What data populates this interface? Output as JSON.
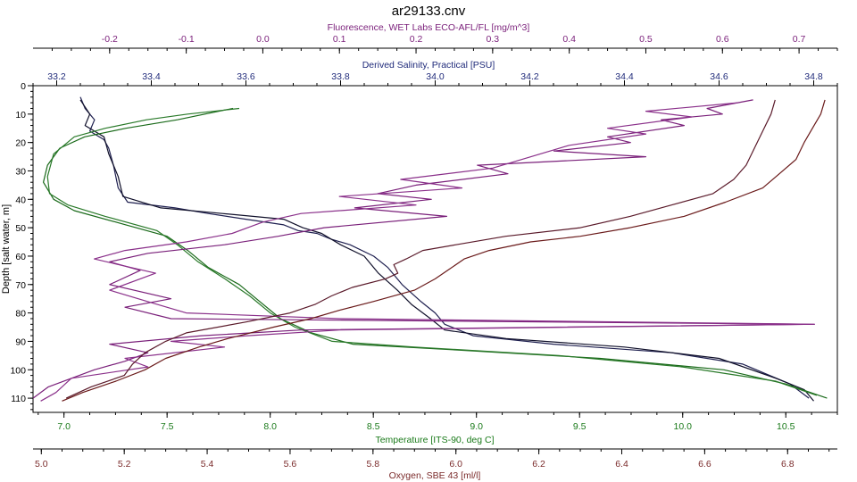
{
  "chart_data": {
    "type": "line",
    "title": "ar29133.cnv",
    "y_axis": {
      "label": "Depth [salt water, m]",
      "range": [
        0,
        115
      ],
      "inverted": true,
      "ticks": [
        "0",
        "10",
        "20",
        "30",
        "40",
        "50",
        "60",
        "70",
        "80",
        "90",
        "100",
        "110"
      ]
    },
    "x_axes": {
      "fluorescence": {
        "label": "Fluorescence, WET Labs ECO-AFL/FL [mg/m^3]",
        "position": "top",
        "range": [
          -0.3,
          0.75
        ],
        "ticks": [
          "-0.2",
          "-0.1",
          "0.0",
          "0.1",
          "0.2",
          "0.3",
          "0.4",
          "0.5",
          "0.6",
          "0.7"
        ],
        "color": "#7a1f7a"
      },
      "salinity": {
        "label": "Derived Salinity, Practical [PSU]",
        "position": "top",
        "range": [
          33.15,
          34.85
        ],
        "ticks": [
          "33.2",
          "33.4",
          "33.6",
          "33.8",
          "34.0",
          "34.2",
          "34.4",
          "34.6",
          "34.8"
        ],
        "color": "#1f2a7a"
      },
      "temperature": {
        "label": "Temperature [ITS-90, deg C]",
        "position": "bottom",
        "range": [
          6.85,
          10.75
        ],
        "ticks": [
          "7.0",
          "7.5",
          "8.0",
          "8.5",
          "9.0",
          "9.5",
          "10.0",
          "10.5"
        ],
        "color": "#1a7a1a"
      },
      "oxygen": {
        "label": "Oxygen, SBE 43 [ml/l]",
        "position": "bottom",
        "range": [
          4.98,
          6.92
        ],
        "ticks": [
          "5.0",
          "5.2",
          "5.4",
          "5.6",
          "5.8",
          "6.0",
          "6.2",
          "6.4",
          "6.6",
          "6.8"
        ],
        "color": "#7a2a2a"
      }
    },
    "series": [
      {
        "axis": "salinity",
        "color": "#1f2050",
        "points": [
          [
            33.25,
            4
          ],
          [
            33.26,
            8
          ],
          [
            33.28,
            12
          ],
          [
            33.27,
            16
          ],
          [
            33.3,
            19
          ],
          [
            33.31,
            22
          ],
          [
            33.32,
            28
          ],
          [
            33.33,
            36
          ],
          [
            33.35,
            41
          ],
          [
            33.45,
            43
          ],
          [
            33.52,
            45
          ],
          [
            33.6,
            47
          ],
          [
            33.68,
            49
          ],
          [
            33.71,
            51
          ],
          [
            33.75,
            52
          ],
          [
            33.78,
            54
          ],
          [
            33.82,
            56
          ],
          [
            33.87,
            60
          ],
          [
            33.9,
            64
          ],
          [
            33.93,
            70
          ],
          [
            33.97,
            76
          ],
          [
            34.0,
            80
          ],
          [
            34.02,
            84
          ],
          [
            34.08,
            88
          ],
          [
            34.25,
            91
          ],
          [
            34.5,
            94
          ],
          [
            34.65,
            98
          ],
          [
            34.75,
            105
          ],
          [
            34.79,
            110
          ]
        ]
      },
      {
        "axis": "salinity",
        "color": "#10102a",
        "points": [
          [
            33.25,
            5
          ],
          [
            33.27,
            10
          ],
          [
            33.26,
            14
          ],
          [
            33.3,
            18
          ],
          [
            33.31,
            24
          ],
          [
            33.33,
            32
          ],
          [
            33.34,
            39
          ],
          [
            33.42,
            43
          ],
          [
            33.55,
            45
          ],
          [
            33.68,
            47
          ],
          [
            33.72,
            50
          ],
          [
            33.76,
            52
          ],
          [
            33.8,
            56
          ],
          [
            33.85,
            60
          ],
          [
            33.88,
            66
          ],
          [
            33.92,
            72
          ],
          [
            33.95,
            77
          ],
          [
            33.99,
            82
          ],
          [
            34.02,
            86
          ],
          [
            34.15,
            89
          ],
          [
            34.4,
            92
          ],
          [
            34.6,
            96
          ],
          [
            34.72,
            103
          ],
          [
            34.78,
            107
          ],
          [
            34.8,
            111
          ]
        ]
      },
      {
        "axis": "temperature",
        "color": "#1a6a1a",
        "points": [
          [
            7.82,
            8
          ],
          [
            7.75,
            9
          ],
          [
            7.55,
            12
          ],
          [
            7.3,
            15
          ],
          [
            7.1,
            18
          ],
          [
            6.98,
            22
          ],
          [
            6.92,
            28
          ],
          [
            6.9,
            34
          ],
          [
            6.95,
            40
          ],
          [
            7.05,
            44
          ],
          [
            7.3,
            49
          ],
          [
            7.5,
            53
          ],
          [
            7.6,
            58
          ],
          [
            7.7,
            64
          ],
          [
            7.85,
            70
          ],
          [
            7.95,
            76
          ],
          [
            8.05,
            82
          ],
          [
            8.2,
            87
          ],
          [
            8.4,
            91
          ],
          [
            8.9,
            93
          ],
          [
            9.6,
            96
          ],
          [
            10.2,
            100
          ],
          [
            10.5,
            105
          ],
          [
            10.7,
            110
          ]
        ]
      },
      {
        "axis": "temperature",
        "color": "#2a7a2a",
        "points": [
          [
            7.85,
            8
          ],
          [
            7.6,
            10
          ],
          [
            7.4,
            12
          ],
          [
            7.2,
            15
          ],
          [
            7.05,
            18
          ],
          [
            6.95,
            24
          ],
          [
            6.92,
            32
          ],
          [
            6.93,
            38
          ],
          [
            7.02,
            42
          ],
          [
            7.2,
            46
          ],
          [
            7.45,
            51
          ],
          [
            7.55,
            56
          ],
          [
            7.65,
            62
          ],
          [
            7.78,
            68
          ],
          [
            7.9,
            74
          ],
          [
            8.0,
            80
          ],
          [
            8.12,
            85
          ],
          [
            8.3,
            90
          ],
          [
            8.7,
            92
          ],
          [
            9.4,
            95
          ],
          [
            10.0,
            99
          ],
          [
            10.45,
            104
          ],
          [
            10.65,
            109
          ]
        ]
      },
      {
        "axis": "fluorescence",
        "color": "#7a207a",
        "points": [
          [
            0.64,
            5
          ],
          [
            0.58,
            8
          ],
          [
            0.6,
            10
          ],
          [
            0.52,
            12
          ],
          [
            0.55,
            14
          ],
          [
            0.45,
            18
          ],
          [
            0.48,
            20
          ],
          [
            0.38,
            23
          ],
          [
            0.5,
            25
          ],
          [
            0.28,
            28
          ],
          [
            0.32,
            31
          ],
          [
            0.2,
            35
          ],
          [
            0.15,
            38
          ],
          [
            0.22,
            40
          ],
          [
            0.12,
            43
          ],
          [
            0.24,
            46
          ],
          [
            0.08,
            50
          ],
          [
            0.02,
            53
          ],
          [
            -0.05,
            56
          ],
          [
            -0.15,
            59
          ],
          [
            -0.2,
            62
          ],
          [
            -0.16,
            65
          ],
          [
            -0.2,
            70
          ],
          [
            -0.12,
            75
          ],
          [
            -0.18,
            78
          ],
          [
            -0.12,
            82
          ],
          [
            0.72,
            84
          ],
          [
            0.05,
            86
          ],
          [
            -0.08,
            88
          ],
          [
            -0.2,
            91
          ],
          [
            -0.15,
            94
          ],
          [
            -0.18,
            97
          ],
          [
            -0.22,
            100
          ],
          [
            -0.28,
            106
          ],
          [
            -0.3,
            110
          ]
        ]
      },
      {
        "axis": "fluorescence",
        "color": "#8a308a",
        "points": [
          [
            0.62,
            6
          ],
          [
            0.5,
            9
          ],
          [
            0.56,
            11
          ],
          [
            0.45,
            15
          ],
          [
            0.5,
            17
          ],
          [
            0.4,
            21
          ],
          [
            0.35,
            25
          ],
          [
            0.3,
            29
          ],
          [
            0.18,
            33
          ],
          [
            0.26,
            36
          ],
          [
            0.1,
            39
          ],
          [
            0.2,
            42
          ],
          [
            0.05,
            45
          ],
          [
            0.0,
            48
          ],
          [
            -0.04,
            52
          ],
          [
            -0.1,
            55
          ],
          [
            -0.18,
            58
          ],
          [
            -0.22,
            61
          ],
          [
            -0.14,
            66
          ],
          [
            -0.2,
            72
          ],
          [
            -0.15,
            76
          ],
          [
            -0.1,
            80
          ],
          [
            0.1,
            82
          ],
          [
            0.72,
            84
          ],
          [
            0.1,
            86
          ],
          [
            -0.02,
            88
          ],
          [
            -0.12,
            90
          ],
          [
            -0.05,
            92
          ],
          [
            -0.18,
            96
          ],
          [
            -0.15,
            99
          ],
          [
            -0.25,
            103
          ],
          [
            -0.27,
            108
          ],
          [
            -0.29,
            111
          ]
        ]
      },
      {
        "axis": "oxygen",
        "color": "#5a1a2a",
        "points": [
          [
            6.77,
            5
          ],
          [
            6.76,
            10
          ],
          [
            6.74,
            16
          ],
          [
            6.72,
            22
          ],
          [
            6.7,
            28
          ],
          [
            6.67,
            33
          ],
          [
            6.62,
            38
          ],
          [
            6.52,
            42
          ],
          [
            6.42,
            46
          ],
          [
            6.3,
            50
          ],
          [
            6.12,
            53
          ],
          [
            6.0,
            56
          ],
          [
            5.92,
            58
          ],
          [
            5.88,
            61
          ],
          [
            5.85,
            63
          ],
          [
            5.86,
            66
          ],
          [
            5.83,
            68
          ],
          [
            5.75,
            71
          ],
          [
            5.7,
            74
          ],
          [
            5.66,
            77
          ],
          [
            5.6,
            80
          ],
          [
            5.5,
            83
          ],
          [
            5.35,
            87
          ],
          [
            5.3,
            90
          ],
          [
            5.25,
            94
          ],
          [
            5.22,
            98
          ],
          [
            5.2,
            102
          ],
          [
            5.12,
            106
          ],
          [
            5.06,
            110
          ]
        ]
      },
      {
        "axis": "oxygen",
        "color": "#6a1a1a",
        "points": [
          [
            6.89,
            5
          ],
          [
            6.88,
            10
          ],
          [
            6.86,
            15
          ],
          [
            6.84,
            20
          ],
          [
            6.82,
            26
          ],
          [
            6.78,
            31
          ],
          [
            6.74,
            36
          ],
          [
            6.65,
            41
          ],
          [
            6.55,
            46
          ],
          [
            6.42,
            50
          ],
          [
            6.3,
            53
          ],
          [
            6.18,
            55
          ],
          [
            6.08,
            58
          ],
          [
            6.02,
            61
          ],
          [
            5.98,
            65
          ],
          [
            5.95,
            68
          ],
          [
            5.9,
            72
          ],
          [
            5.8,
            76
          ],
          [
            5.72,
            79
          ],
          [
            5.65,
            82
          ],
          [
            5.56,
            85
          ],
          [
            5.45,
            89
          ],
          [
            5.38,
            92
          ],
          [
            5.3,
            96
          ],
          [
            5.25,
            100
          ],
          [
            5.18,
            104
          ],
          [
            5.1,
            108
          ],
          [
            5.05,
            111
          ]
        ]
      }
    ]
  }
}
